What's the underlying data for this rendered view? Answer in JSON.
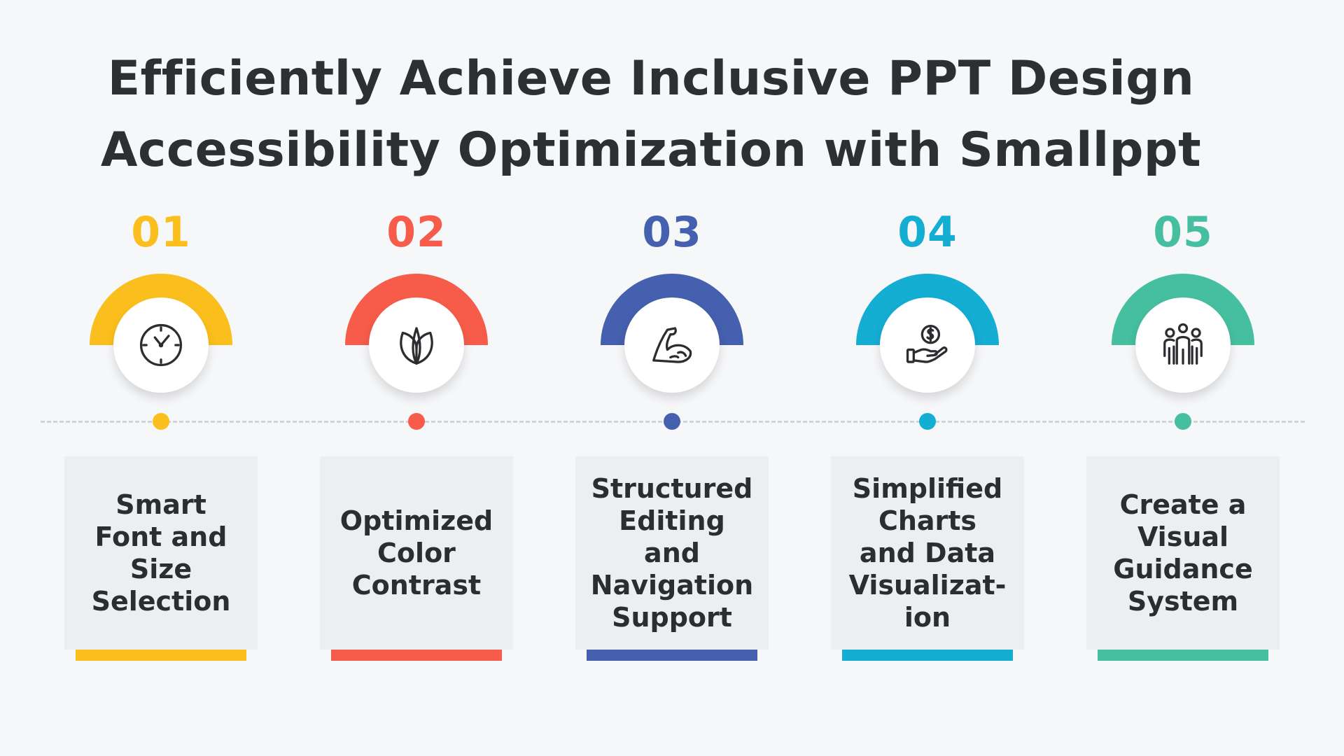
{
  "title": {
    "line1": "Efficiently Achieve Inclusive PPT Design",
    "line2": "Accessibility Optimization with Smallppt"
  },
  "steps": [
    {
      "number": "01",
      "color": "#fbbf1d",
      "icon": "clock-icon",
      "label": "Smart\nFont and\nSize\nSelection"
    },
    {
      "number": "02",
      "color": "#f65c49",
      "icon": "leaf-icon",
      "label": "Optimized\nColor\nContrast"
    },
    {
      "number": "03",
      "color": "#4560ae",
      "icon": "muscle-arm-icon",
      "label": "Structured\nEditing\nand\nNavigation\nSupport"
    },
    {
      "number": "04",
      "color": "#14aed2",
      "icon": "hand-coin-icon",
      "label": "Simplified\nCharts\nand Data\nVisualizat-\nion"
    },
    {
      "number": "05",
      "color": "#46bfa1",
      "icon": "team-icon",
      "label": "Create a\nVisual\nGuidance\nSystem"
    }
  ]
}
